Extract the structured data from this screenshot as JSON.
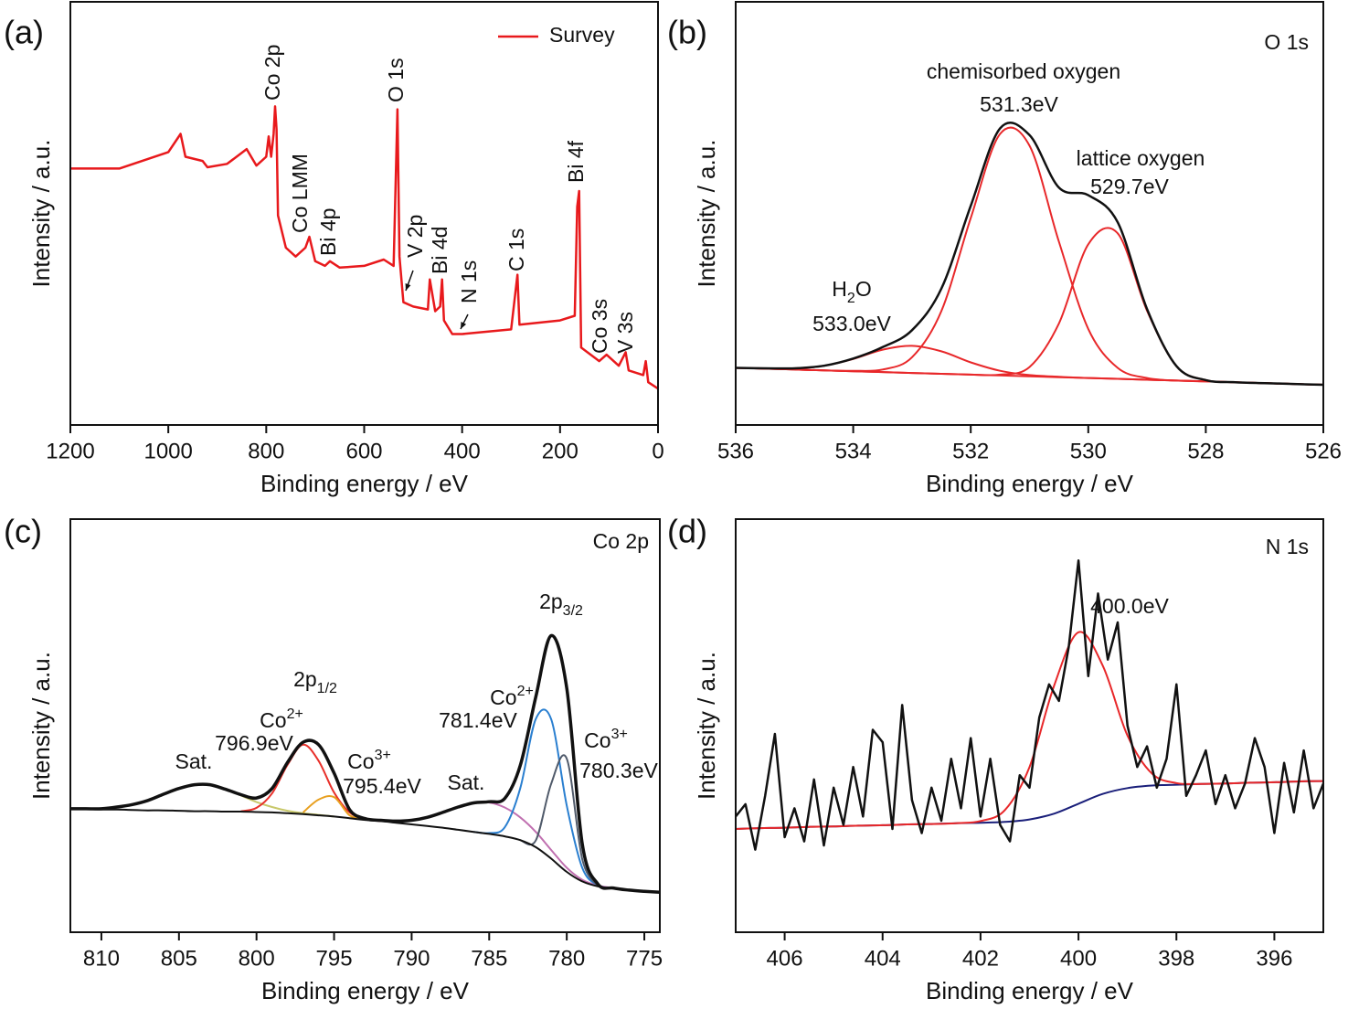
{
  "chart_data": [
    {
      "type": "line",
      "panel_label": "(a)",
      "xlabel": "Binding energy / eV",
      "ylabel": "Intensity / a.u.",
      "xlim": [
        1200,
        0
      ],
      "ylim": [
        0,
        100
      ],
      "xticks": [
        1200,
        1000,
        800,
        600,
        400,
        200,
        0
      ],
      "legend": "upper right",
      "x": [
        1200,
        1100,
        1000,
        975,
        965,
        930,
        920,
        880,
        840,
        820,
        800,
        795,
        790,
        785,
        782,
        779,
        776,
        760,
        740,
        720,
        712,
        700,
        680,
        670,
        650,
        600,
        560,
        540,
        532,
        528,
        520,
        500,
        470,
        466,
        455,
        445,
        441,
        437,
        420,
        400,
        300,
        287,
        283,
        200,
        170,
        165,
        161,
        157,
        120,
        105,
        80,
        66,
        60,
        30,
        25,
        20,
        0
      ],
      "series": [
        {
          "name": "Survey",
          "color": "#e8191c",
          "values": [
            60.6,
            60.6,
            64.5,
            68.8,
            63.4,
            62.4,
            60.9,
            61.7,
            65.2,
            61.3,
            63.4,
            68.2,
            63.4,
            68.8,
            75.3,
            69.9,
            49.5,
            41.9,
            39.8,
            41.9,
            44.5,
            38.7,
            37.6,
            38.7,
            37.2,
            37.6,
            39.1,
            37.6,
            74.6,
            39.8,
            29.0,
            28.0,
            27.3,
            34.4,
            26.9,
            28.0,
            34.4,
            24.7,
            21.5,
            21.5,
            22.6,
            35.5,
            23.7,
            24.7,
            25.8,
            51.6,
            55.3,
            18.3,
            15.1,
            16.6,
            14.0,
            17.2,
            12.9,
            11.8,
            15.1,
            10.1,
            8.6
          ]
        }
      ],
      "annotations": [
        {
          "text": "Co 2p"
        },
        {
          "text": "Co LMM"
        },
        {
          "text": "Bi 4p"
        },
        {
          "text": "O 1s"
        },
        {
          "text": "V 2p"
        },
        {
          "text": "Bi 4d"
        },
        {
          "text": "N 1s"
        },
        {
          "text": "C 1s"
        },
        {
          "text": "Bi 4f"
        },
        {
          "text": "Co 3s"
        },
        {
          "text": "V 3s"
        }
      ]
    },
    {
      "type": "line",
      "panel_label": "(b)",
      "xlabel": "Binding energy / eV",
      "ylabel": "Intensity / a.u.",
      "xlim": [
        536,
        526
      ],
      "ylim": [
        0,
        100
      ],
      "xticks": [
        536,
        534,
        532,
        530,
        528,
        526
      ],
      "x": [
        536,
        535.5,
        535,
        534.5,
        534,
        533.5,
        533,
        532.5,
        532,
        531.5,
        531,
        530.5,
        530,
        529.5,
        529,
        528.5,
        528,
        527.5,
        527,
        526.5,
        526
      ],
      "series": [
        {
          "color": "#e8282a",
          "values": [
            13.5,
            13.3,
            13.1,
            12.9,
            12.7,
            12.5,
            12.3,
            12.1,
            11.9,
            11.7,
            11.5,
            11.3,
            11.1,
            10.9,
            10.7,
            10.5,
            10.3,
            10.1,
            9.9,
            9.7,
            9.5
          ]
        },
        {
          "color": "#e8282a",
          "values": [
            13.5,
            13.4,
            13.4,
            14.0,
            15.6,
            17.8,
            18.7,
            17.4,
            14.8,
            12.8,
            11.8,
            11.4,
            11.1,
            10.9,
            10.7,
            10.5,
            10.3,
            10.1,
            9.9,
            9.7,
            9.5
          ]
        },
        {
          "color": "#e8282a",
          "values": [
            13.5,
            13.3,
            13.1,
            12.9,
            12.8,
            13.1,
            16.0,
            26.9,
            48.9,
            68.8,
            66.0,
            43.3,
            22.7,
            13.5,
            11.1,
            10.5,
            10.3,
            10.1,
            9.9,
            9.7,
            9.5
          ]
        },
        {
          "color": "#e8282a",
          "values": [
            13.5,
            13.3,
            13.1,
            12.9,
            12.7,
            12.5,
            12.3,
            12.1,
            11.9,
            11.9,
            13.7,
            24.0,
            42.7,
            45.3,
            27.0,
            13.9,
            10.6,
            10.1,
            9.9,
            9.7,
            9.5
          ]
        },
        {
          "color": "#111111",
          "values": [
            13.5,
            13.4,
            13.4,
            14.0,
            15.7,
            18.4,
            22.4,
            32.2,
            51.8,
            70.1,
            68.5,
            56.1,
            54.3,
            47.9,
            27.4,
            13.9,
            10.6,
            10.1,
            9.9,
            9.7,
            9.5
          ]
        }
      ],
      "annotations": [
        {
          "text": "O 1s"
        },
        {
          "text": "chemisorbed oxygen"
        },
        {
          "text": "531.3eV"
        },
        {
          "text": "lattice oxygen"
        },
        {
          "text": "529.7eV"
        },
        {
          "text": "H",
          "sub": "2",
          "tail": "O"
        },
        {
          "text": "533.0eV"
        }
      ]
    },
    {
      "type": "line",
      "panel_label": "(c)",
      "xlabel": "Binding energy / eV",
      "ylabel": "Intensity / a.u.",
      "xlim": [
        812,
        774
      ],
      "ylim": [
        0,
        100
      ],
      "xticks": [
        810,
        805,
        800,
        795,
        790,
        785,
        780,
        775
      ],
      "x": [
        812,
        811,
        810,
        809,
        808,
        807,
        806,
        805,
        804,
        803,
        802,
        801,
        800,
        799,
        798,
        797,
        796,
        795,
        794,
        793,
        792,
        791,
        790,
        789,
        788,
        787,
        786,
        785,
        784,
        783,
        782,
        781,
        780,
        779,
        778,
        777,
        776,
        775,
        774
      ],
      "series": [
        {
          "color": "#c8c86a",
          "values": [
            29.9,
            29.9,
            29.9,
            30.3,
            30.9,
            31.9,
            33.4,
            34.8,
            35.7,
            35.7,
            34.6,
            33.1,
            31.5,
            30.3,
            29.4,
            28.8,
            28.4,
            28.0,
            null,
            null,
            null,
            null,
            null,
            null,
            null,
            null,
            null,
            null,
            null,
            null,
            null,
            null,
            null,
            null,
            null,
            null,
            null,
            null,
            null
          ]
        },
        {
          "color": "#e8302a",
          "values": [
            null,
            null,
            null,
            null,
            null,
            null,
            null,
            null,
            null,
            null,
            null,
            29.3,
            30.1,
            33.6,
            40.5,
            45.4,
            41.5,
            33.8,
            29.0,
            27.4,
            26.9,
            null,
            null,
            null,
            null,
            null,
            null,
            null,
            null,
            null,
            null,
            null,
            null,
            null,
            null,
            null,
            null,
            null,
            null
          ]
        },
        {
          "color": "#e8a020",
          "values": [
            null,
            null,
            null,
            null,
            null,
            null,
            null,
            null,
            null,
            null,
            null,
            null,
            null,
            null,
            null,
            29.0,
            32.1,
            32.7,
            28.3,
            27.2,
            null,
            null,
            null,
            null,
            null,
            null,
            null,
            null,
            null,
            null,
            null,
            null,
            null,
            null,
            null,
            null,
            null,
            null,
            null
          ]
        },
        {
          "color": "#c070b0",
          "values": [
            null,
            null,
            null,
            null,
            null,
            null,
            null,
            null,
            null,
            null,
            null,
            null,
            null,
            null,
            null,
            null,
            null,
            null,
            null,
            27.3,
            27.1,
            26.9,
            27.1,
            27.8,
            29.0,
            30.3,
            31.3,
            31.4,
            30.2,
            27.8,
            24.3,
            19.9,
            15.6,
            12.7,
            11.3,
            10.7,
            10.2,
            null,
            null
          ]
        },
        {
          "color": "#2a7fd0",
          "values": [
            null,
            null,
            null,
            null,
            null,
            null,
            null,
            null,
            null,
            null,
            null,
            null,
            null,
            null,
            null,
            null,
            null,
            null,
            null,
            null,
            null,
            null,
            null,
            null,
            null,
            null,
            24.3,
            24.0,
            25.4,
            34.8,
            51.6,
            51.5,
            30.6,
            15.6,
            11.4,
            10.6,
            null,
            null,
            null
          ]
        },
        {
          "color": "#505a6a",
          "values": [
            null,
            null,
            null,
            null,
            null,
            null,
            null,
            null,
            null,
            null,
            null,
            null,
            null,
            null,
            null,
            null,
            null,
            null,
            null,
            null,
            null,
            null,
            null,
            null,
            null,
            null,
            null,
            null,
            null,
            22.3,
            22.2,
            36.0,
            42.0,
            17.7,
            11.2,
            null,
            null,
            null,
            null
          ]
        },
        {
          "color": "#111111",
          "values": [
            29.9,
            29.8,
            29.7,
            29.7,
            29.6,
            29.5,
            29.5,
            29.4,
            29.3,
            29.3,
            29.2,
            29.2,
            29.1,
            29.0,
            28.8,
            28.6,
            28.3,
            28.0,
            27.6,
            27.2,
            26.9,
            26.5,
            26.1,
            25.7,
            25.3,
            24.8,
            24.3,
            23.8,
            23.2,
            22.3,
            20.6,
            17.8,
            14.6,
            12.3,
            11.1,
            10.6,
            10.2,
            9.9,
            9.7
          ]
        },
        {
          "color": "#111111",
          "values": [
            29.9,
            29.9,
            29.9,
            30.3,
            30.9,
            31.9,
            33.4,
            34.8,
            35.7,
            35.7,
            34.6,
            33.3,
            32.5,
            34.8,
            41.1,
            46.0,
            45.4,
            38.5,
            29.7,
            27.5,
            27.1,
            26.9,
            27.1,
            27.8,
            29.0,
            30.3,
            31.3,
            31.6,
            32.4,
            40.3,
            56.9,
            71.8,
            59.0,
            21.4,
            11.7,
            10.7,
            10.2,
            9.9,
            9.7
          ]
        }
      ],
      "annotations": [
        {
          "text": "Co 2p"
        },
        {
          "text": "2p",
          "sub": "3/2"
        },
        {
          "text": "2p",
          "sub": "1/2"
        },
        {
          "text": "Co",
          "sup": "2+"
        },
        {
          "text": "796.9eV"
        },
        {
          "text": "Co",
          "sup": "3+"
        },
        {
          "text": "795.4eV"
        },
        {
          "text": "Sat."
        },
        {
          "text": "Sat."
        },
        {
          "text": "Co",
          "sup": "2+"
        },
        {
          "text": "781.4eV"
        },
        {
          "text": "Co",
          "sup": "3+"
        },
        {
          "text": "780.3eV"
        }
      ]
    },
    {
      "type": "line",
      "panel_label": "(d)",
      "xlabel": "Binding energy / eV",
      "ylabel": "Intensity / a.u.",
      "xlim": [
        407,
        395
      ],
      "ylim": [
        0,
        100
      ],
      "xticks": [
        406,
        404,
        402,
        400,
        398,
        396
      ],
      "x": [
        407,
        406.8,
        406.6,
        406.4,
        406.2,
        406,
        405.8,
        405.6,
        405.4,
        405.2,
        405,
        404.8,
        404.6,
        404.4,
        404.2,
        404,
        403.8,
        403.6,
        403.4,
        403.2,
        403,
        402.8,
        402.6,
        402.4,
        402.2,
        402,
        401.8,
        401.6,
        401.4,
        401.2,
        401,
        400.8,
        400.6,
        400.4,
        400.2,
        400,
        399.8,
        399.6,
        399.4,
        399.2,
        399,
        398.8,
        398.6,
        398.4,
        398.2,
        398,
        397.8,
        397.6,
        397.4,
        397.2,
        397,
        396.8,
        396.6,
        396.4,
        396.2,
        396,
        395.8,
        395.6,
        395.4,
        395.2,
        395
      ],
      "series": [
        {
          "color": "#1a1f7a",
          "x": [
            407,
            406.5,
            406,
            405.5,
            405,
            404.5,
            404,
            403.5,
            403,
            402.5,
            402,
            401.5,
            401,
            400.5,
            400,
            399.5,
            399,
            398.5,
            398,
            397.5,
            397,
            396.5,
            396,
            395.5,
            395
          ],
          "values": [
            25.0,
            25.2,
            25.3,
            25.5,
            25.6,
            25.8,
            25.9,
            26.1,
            26.2,
            26.4,
            26.5,
            26.7,
            27.3,
            28.7,
            31.1,
            33.5,
            34.9,
            35.5,
            35.7,
            35.9,
            36.0,
            36.2,
            36.3,
            36.5,
            36.6
          ]
        },
        {
          "color": "#e8282a",
          "x": [
            407,
            406.5,
            406,
            405.5,
            405,
            404.5,
            404,
            403.5,
            403,
            402.5,
            402,
            401.5,
            401,
            400.5,
            400,
            399.5,
            399,
            398.5,
            398,
            397.5,
            397,
            396.5,
            396,
            395.5,
            395
          ],
          "values": [
            25.0,
            25.2,
            25.3,
            25.5,
            25.6,
            25.8,
            25.9,
            26.1,
            26.2,
            26.4,
            26.9,
            29.6,
            40.0,
            59.6,
            72.6,
            64.4,
            47.6,
            38.4,
            36.1,
            35.9,
            36.0,
            36.2,
            36.3,
            36.5,
            36.6
          ]
        },
        {
          "color": "#111111",
          "values": [
            28,
            31,
            20,
            33,
            48,
            23,
            30,
            22,
            37,
            21,
            35,
            26,
            40,
            28,
            49,
            46,
            25,
            55,
            32,
            24,
            35,
            27,
            42,
            30,
            47,
            28,
            42,
            26,
            22,
            38,
            35,
            52,
            60,
            56,
            69,
            90,
            62,
            82,
            66,
            75,
            50,
            40,
            45,
            35,
            42,
            60,
            33,
            38,
            44,
            31,
            38,
            30,
            36,
            47,
            40,
            24,
            41,
            29,
            44,
            30,
            36
          ]
        }
      ],
      "annotations": [
        {
          "text": "N 1s"
        },
        {
          "text": "400.0eV"
        }
      ]
    }
  ]
}
